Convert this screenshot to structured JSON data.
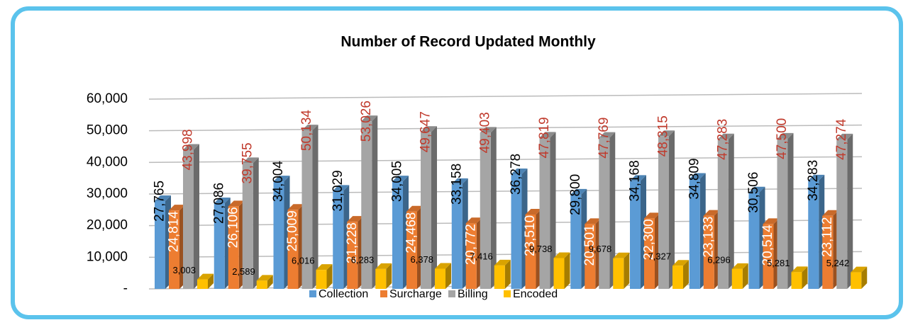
{
  "chart_data": {
    "type": "bar3d",
    "title": "Number of Record Updated Monthly",
    "categories": [
      null,
      null,
      null,
      null,
      null,
      null,
      null,
      null,
      null,
      null,
      null,
      null
    ],
    "series": [
      {
        "name": "Collection",
        "color": "#5b9bd5",
        "label_color": "#000000",
        "values": [
          27765,
          27086,
          34004,
          31029,
          34005,
          33158,
          36278,
          29800,
          34168,
          34809,
          30506,
          34283
        ],
        "value_labels": [
          "27,765",
          "27,086",
          "34,004",
          "31,029",
          "34,005",
          "33,158",
          "36,278",
          "29,800",
          "34,168",
          "34,809",
          "30,506",
          "34,283"
        ]
      },
      {
        "name": "Surcharge",
        "color": "#ed7d31",
        "label_color": "#ffffff",
        "values": [
          24814,
          26106,
          25009,
          21228,
          24468,
          20772,
          23510,
          20501,
          22300,
          23133,
          20514,
          23112
        ],
        "value_labels": [
          "24,814",
          "26,106",
          "25,009",
          "21,228",
          "24,468",
          "20,772",
          "23,510",
          "20,501",
          "22,300",
          "23,133",
          "20,514",
          "23,112"
        ]
      },
      {
        "name": "Billing",
        "color": "#a5a5a5",
        "label_color": "#c0392b",
        "values": [
          43998,
          39755,
          50134,
          53026,
          49647,
          49403,
          47819,
          47769,
          48315,
          47283,
          47500,
          47274
        ],
        "value_labels": [
          "43,998",
          "39,755",
          "50,134",
          "53,026",
          "49,647",
          "49,403",
          "47,819",
          "47,769",
          "48,315",
          "47,283",
          "47,500",
          "47,274"
        ]
      },
      {
        "name": "Encoded",
        "color": "#ffc000",
        "label_color": "#000000",
        "values": [
          3003,
          2589,
          6016,
          6283,
          6378,
          7416,
          9738,
          9678,
          7327,
          6296,
          5281,
          5242
        ],
        "value_labels": [
          "3,003",
          "2,589",
          "6,016",
          "6,283",
          "6,378",
          "7,416",
          "9,738",
          "9,678",
          "7,327",
          "6,296",
          "5,281",
          "5,242"
        ]
      }
    ],
    "ylim": [
      0,
      60000
    ],
    "yticks": [
      {
        "value": 0,
        "label": "-"
      },
      {
        "value": 10000,
        "label": "10,000"
      },
      {
        "value": 20000,
        "label": "20,000"
      },
      {
        "value": 30000,
        "label": "30,000"
      },
      {
        "value": 40000,
        "label": "40,000"
      },
      {
        "value": 50000,
        "label": "50,000"
      },
      {
        "value": 60000,
        "label": "60,000"
      }
    ],
    "grid": true,
    "legend": "bottom"
  }
}
